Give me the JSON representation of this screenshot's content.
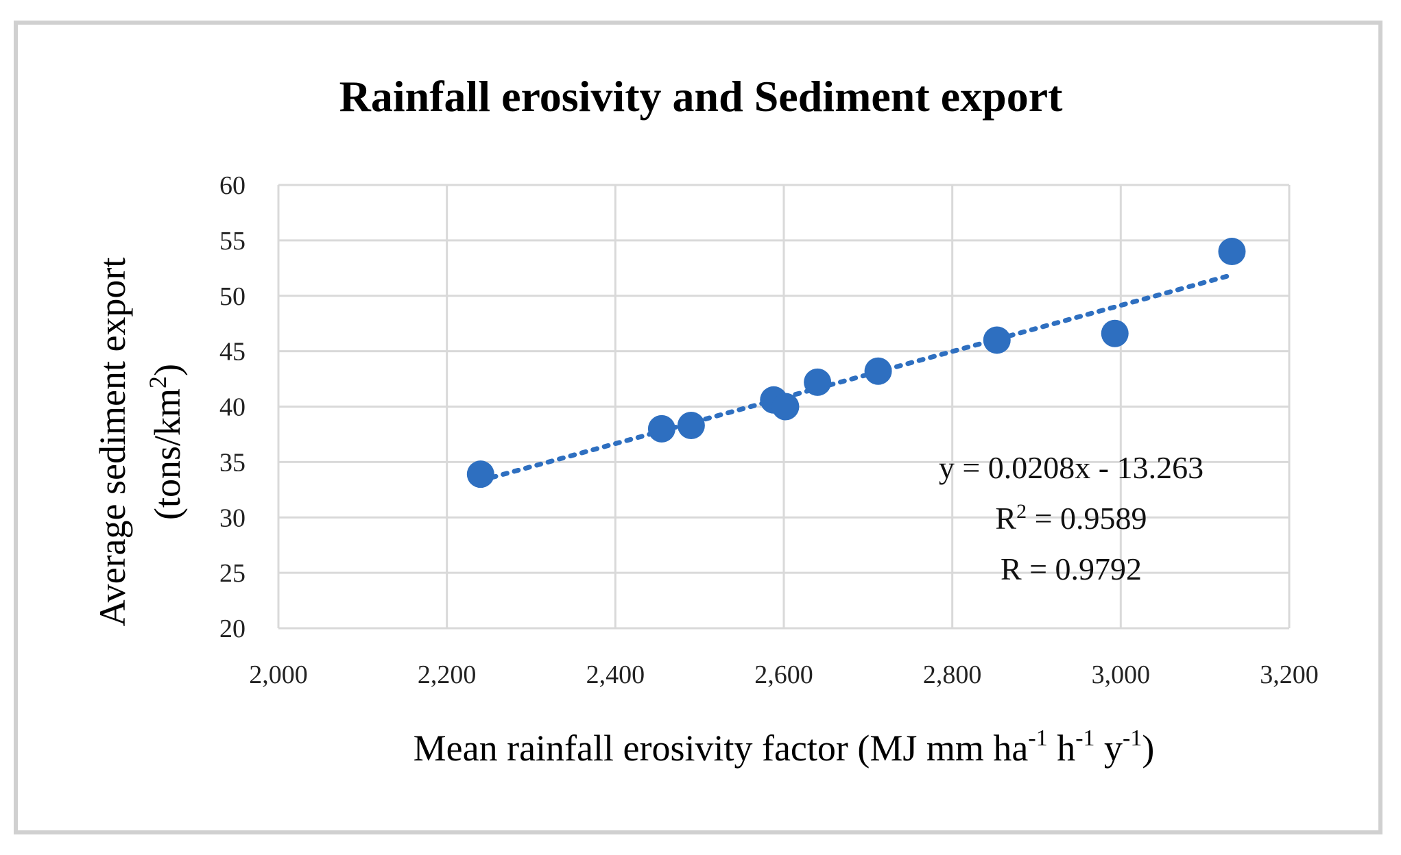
{
  "chart_data": {
    "type": "scatter",
    "title": "Rainfall erosivity and Sediment export",
    "xlabel_main": "Mean rainfall erosivity factor (MJ mm ha",
    "xlabel_sup1": "-1",
    "xlabel_mid1": " h",
    "xlabel_sup2": "-1",
    "xlabel_mid2": " y",
    "xlabel_sup3": "-1",
    "xlabel_end": ")",
    "ylabel_line1": "Average sediment export",
    "ylabel_line2_main": "(tons/km",
    "ylabel_line2_sup": "2",
    "ylabel_line2_end": ")",
    "xlim": [
      2000,
      3200
    ],
    "ylim": [
      20,
      60
    ],
    "x_ticks": [
      2000,
      2200,
      2400,
      2600,
      2800,
      3000,
      3200
    ],
    "x_tick_labels": [
      "2,000",
      "2,200",
      "2,400",
      "2,600",
      "2,800",
      "3,000",
      "3,200"
    ],
    "y_ticks": [
      20,
      25,
      30,
      35,
      40,
      45,
      50,
      55,
      60
    ],
    "y_tick_labels": [
      "20",
      "25",
      "30",
      "35",
      "40",
      "45",
      "50",
      "55",
      "60"
    ],
    "grid": true,
    "series": [
      {
        "name": "Sediment export",
        "color": "#2e6fc0",
        "points": [
          {
            "x": 2240,
            "y": 33.9
          },
          {
            "x": 2455,
            "y": 38.0
          },
          {
            "x": 2490,
            "y": 38.3
          },
          {
            "x": 2588,
            "y": 40.6
          },
          {
            "x": 2602,
            "y": 40.0
          },
          {
            "x": 2640,
            "y": 42.2
          },
          {
            "x": 2712,
            "y": 43.2
          },
          {
            "x": 2853,
            "y": 46.0
          },
          {
            "x": 2993,
            "y": 46.6
          },
          {
            "x": 3132,
            "y": 54.0
          }
        ]
      }
    ],
    "trendline": {
      "type": "linear",
      "slope": 0.0208,
      "intercept": -13.263,
      "x_range": [
        2240,
        3132
      ],
      "color": "#2e6fc0",
      "style": "dotted"
    },
    "annotations": {
      "equation": "y = 0.0208x - 13.263",
      "r2_prefix": "R",
      "r2_sup": "2",
      "r2_value": " = 0.9589",
      "r_text": "R = 0.9792"
    }
  }
}
